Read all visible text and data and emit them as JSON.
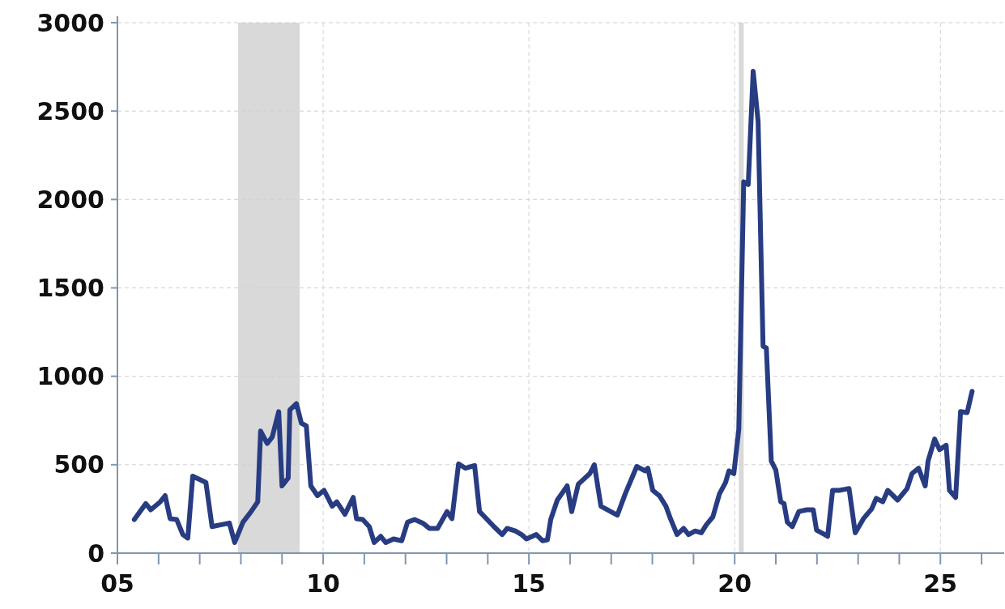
{
  "chart_data": {
    "type": "line",
    "x": [
      2005.41,
      2005.69,
      2005.81,
      2006.04,
      2006.16,
      2006.28,
      2006.44,
      2006.59,
      2006.71,
      2006.83,
      2007.15,
      2007.3,
      2007.5,
      2007.72,
      2007.85,
      2008.05,
      2008.25,
      2008.41,
      2008.48,
      2008.64,
      2008.76,
      2008.92,
      2009.0,
      2009.15,
      2009.19,
      2009.35,
      2009.47,
      2009.59,
      2009.7,
      2009.86,
      2010.02,
      2010.22,
      2010.33,
      2010.53,
      2010.73,
      2010.81,
      2010.96,
      2011.12,
      2011.24,
      2011.4,
      2011.52,
      2011.71,
      2011.91,
      2012.05,
      2012.22,
      2012.42,
      2012.58,
      2012.78,
      2013.01,
      2013.13,
      2013.29,
      2013.46,
      2013.68,
      2013.8,
      2014.15,
      2014.35,
      2014.47,
      2014.67,
      2014.82,
      2014.94,
      2015.18,
      2015.33,
      2015.45,
      2015.53,
      2015.69,
      2015.93,
      2016.04,
      2016.2,
      2016.48,
      2016.59,
      2016.75,
      2017.03,
      2017.15,
      2017.34,
      2017.62,
      2017.82,
      2017.89,
      2018.01,
      2018.17,
      2018.33,
      2018.44,
      2018.6,
      2018.76,
      2018.88,
      2019.04,
      2019.19,
      2019.31,
      2019.47,
      2019.63,
      2019.78,
      2019.86,
      2019.98,
      2020.1,
      2020.22,
      2020.33,
      2020.45,
      2020.57,
      2020.69,
      2020.77,
      2020.89,
      2021.0,
      2021.12,
      2021.2,
      2021.28,
      2021.4,
      2021.56,
      2021.75,
      2021.91,
      2021.99,
      2022.19,
      2022.26,
      2022.38,
      2022.54,
      2022.66,
      2022.78,
      2022.93,
      2023.13,
      2023.33,
      2023.44,
      2023.6,
      2023.72,
      2023.96,
      2024.19,
      2024.31,
      2024.47,
      2024.63,
      2024.7,
      2024.86,
      2024.98,
      2025.14,
      2025.22,
      2025.37,
      2025.49,
      2025.65,
      2025.77
    ],
    "series": [
      {
        "color": "#283c82",
        "values": [
          190,
          280,
          245,
          290,
          325,
          195,
          190,
          105,
          85,
          435,
          400,
          150,
          160,
          170,
          60,
          175,
          235,
          290,
          690,
          620,
          655,
          800,
          380,
          425,
          810,
          845,
          735,
          720,
          380,
          325,
          355,
          265,
          290,
          220,
          315,
          195,
          190,
          150,
          60,
          95,
          60,
          80,
          70,
          175,
          190,
          170,
          140,
          140,
          235,
          195,
          505,
          480,
          495,
          235,
          150,
          105,
          140,
          125,
          105,
          80,
          105,
          70,
          75,
          190,
          300,
          380,
          235,
          390,
          450,
          500,
          265,
          230,
          215,
          335,
          490,
          465,
          480,
          355,
          325,
          265,
          195,
          105,
          140,
          105,
          125,
          115,
          160,
          205,
          335,
          400,
          465,
          450,
          700,
          2100,
          2085,
          2725,
          2440,
          1170,
          1160,
          520,
          470,
          290,
          280,
          175,
          150,
          235,
          245,
          245,
          130,
          105,
          95,
          355,
          355,
          360,
          365,
          115,
          195,
          250,
          310,
          290,
          355,
          300,
          365,
          450,
          480,
          380,
          520,
          645,
          585,
          610,
          355,
          315,
          800,
          795,
          915
        ]
      }
    ],
    "xlim": [
      2005,
      2026.55
    ],
    "xticks": [
      {
        "value": 2005,
        "label": "05"
      },
      {
        "value": 2006,
        "label": null
      },
      {
        "value": 2007,
        "label": null
      },
      {
        "value": 2008,
        "label": null
      },
      {
        "value": 2009,
        "label": null
      },
      {
        "value": 2010,
        "label": "10"
      },
      {
        "value": 2011,
        "label": null
      },
      {
        "value": 2012,
        "label": null
      },
      {
        "value": 2013,
        "label": null
      },
      {
        "value": 2014,
        "label": null
      },
      {
        "value": 2015,
        "label": "15"
      },
      {
        "value": 2016,
        "label": null
      },
      {
        "value": 2017,
        "label": null
      },
      {
        "value": 2018,
        "label": null
      },
      {
        "value": 2019,
        "label": null
      },
      {
        "value": 2020,
        "label": "20"
      },
      {
        "value": 2021,
        "label": null
      },
      {
        "value": 2022,
        "label": null
      },
      {
        "value": 2023,
        "label": null
      },
      {
        "value": 2024,
        "label": null
      },
      {
        "value": 2025,
        "label": "25"
      },
      {
        "value": 2026,
        "label": null
      }
    ],
    "ylim": [
      0,
      3000
    ],
    "yticks": [
      0,
      500,
      1000,
      1500,
      2000,
      2500,
      3000
    ],
    "bands": [
      {
        "axis": "x",
        "from": 2007.93,
        "to": 2009.43,
        "color": "#d9d9d9"
      },
      {
        "axis": "x",
        "from": 2020.1,
        "to": 2020.22,
        "color": "#d9d9d9"
      }
    ],
    "grid": true,
    "marker": "none",
    "line_style": "solid"
  }
}
